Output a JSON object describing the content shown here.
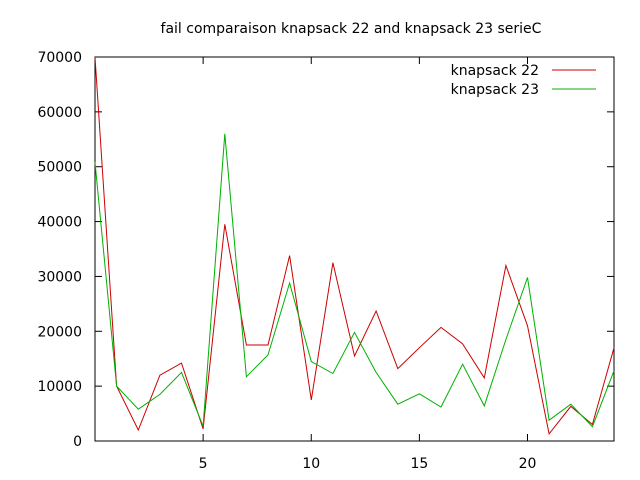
{
  "chart_data": {
    "type": "line",
    "title": "fail comparaison knapsack 22 and knapsack 23 serieC",
    "xlabel": "",
    "ylabel": "",
    "xlim": [
      0,
      24
    ],
    "ylim": [
      0,
      70000
    ],
    "xticks": [
      5,
      10,
      15,
      20
    ],
    "yticks": [
      0,
      10000,
      20000,
      30000,
      40000,
      50000,
      60000,
      70000
    ],
    "grid": false,
    "legend_position": "top-right",
    "x": [
      0,
      1,
      2,
      3,
      4,
      5,
      6,
      7,
      8,
      9,
      10,
      11,
      12,
      13,
      14,
      15,
      16,
      17,
      18,
      19,
      20,
      21,
      22,
      23,
      24
    ],
    "series": [
      {
        "name": "knapsack 22",
        "color": "#cc0000",
        "values": [
          70000,
          10000,
          2000,
          12000,
          14200,
          2200,
          39500,
          17500,
          17500,
          33800,
          7500,
          32500,
          15500,
          23700,
          13200,
          17000,
          20700,
          17700,
          11500,
          32000,
          21000,
          1300,
          6300,
          3000,
          17000
        ]
      },
      {
        "name": "knapsack 23",
        "color": "#00b000",
        "values": [
          50800,
          10000,
          5800,
          8500,
          12500,
          2700,
          56000,
          11700,
          15700,
          28800,
          14500,
          12300,
          19800,
          12500,
          6700,
          8600,
          6200,
          14000,
          6400,
          18500,
          29800,
          3800,
          6700,
          2600,
          12800
        ]
      }
    ]
  }
}
